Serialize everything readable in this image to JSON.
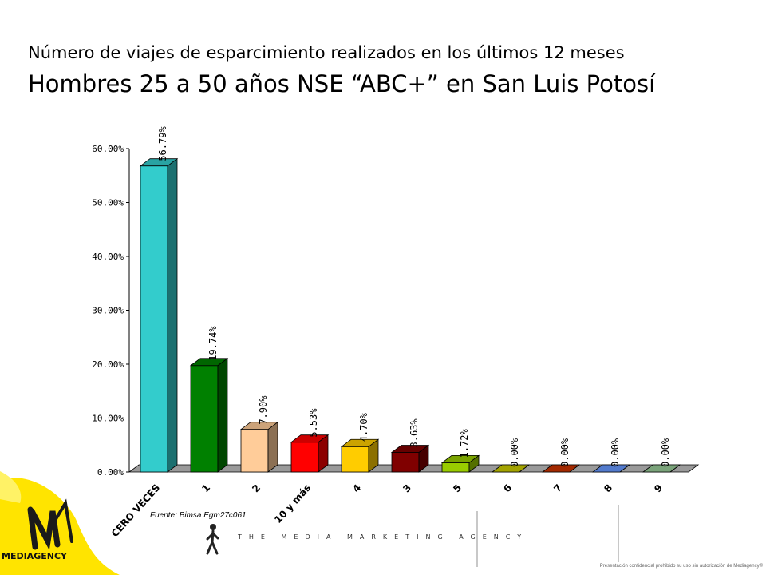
{
  "header": {
    "subtitle": "Número de viajes de esparcimiento realizados en los últimos 12 meses",
    "title": "Hombres 25 a 50 años NSE “ABC+” en San Luis Potosí"
  },
  "chart_data": {
    "type": "bar",
    "title": "",
    "xlabel": "",
    "ylabel": "",
    "categories": [
      "CERO VECES",
      "1",
      "2",
      "10 y más",
      "4",
      "3",
      "5",
      "6",
      "7",
      "8",
      "9"
    ],
    "values": [
      56.79,
      19.74,
      7.9,
      5.53,
      4.7,
      3.63,
      1.72,
      0.0,
      0.0,
      0.0,
      0.0
    ],
    "value_labels": [
      "56.79%",
      "19.74%",
      "7.90%",
      "5.53%",
      "4.70%",
      "3.63%",
      "1.72%",
      "0.00%",
      "0.00%",
      "0.00%",
      "0.00%"
    ],
    "colors": [
      "#33cccc",
      "#008000",
      "#ffcc99",
      "#ff0000",
      "#ffcc00",
      "#800000",
      "#99cc00",
      "#cccc00",
      "#cc3300",
      "#6699ff",
      "#99cc99"
    ],
    "yticks": [
      "0.00%",
      "10.00%",
      "20.00%",
      "30.00%",
      "40.00%",
      "50.00%",
      "60.00%"
    ],
    "ylim": [
      0,
      60
    ],
    "grid": false,
    "legend": "none",
    "style": "3d-bar"
  },
  "source": "Fuente: Bimsa Egm27c061",
  "footer": {
    "tagline": "THE MEDIA MARKETING AGENCY",
    "brand": "MEDIAGENCY",
    "disclaimer": "Presentación confidencial prohibido su uso sin autorización de Mediagency®"
  }
}
